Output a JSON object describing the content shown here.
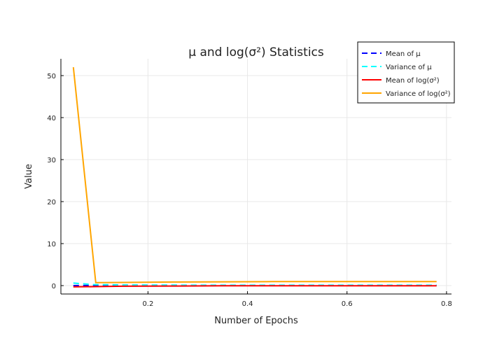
{
  "chart_data": {
    "type": "line",
    "title": "μ and log(σ²) Statistics",
    "xlabel": "Number of Epochs",
    "ylabel": "Value",
    "xlim": [
      0.025,
      0.81
    ],
    "ylim": [
      -2,
      54
    ],
    "xticks": [
      0.2,
      0.4,
      0.6,
      0.8
    ],
    "xtick_labels": [
      "0.2",
      "0.4",
      "0.6",
      "0.8"
    ],
    "yticks": [
      0,
      10,
      20,
      30,
      40,
      50
    ],
    "ytick_labels": [
      "0",
      "10",
      "20",
      "30",
      "40",
      "50"
    ],
    "grid": true,
    "legend_position": "top-right",
    "series": [
      {
        "name": "Mean of μ",
        "color": "#0000ff",
        "dash": "dashed",
        "x": [
          0.05,
          0.09,
          0.15,
          0.25,
          0.35,
          0.45,
          0.55,
          0.65,
          0.78
        ],
        "y": [
          0.0,
          0.05,
          0.05,
          0.05,
          0.05,
          0.05,
          0.05,
          0.05,
          0.05
        ]
      },
      {
        "name": "Variance of μ",
        "color": "#00ffff",
        "dash": "dashed",
        "x": [
          0.05,
          0.09,
          0.15,
          0.25,
          0.35,
          0.45,
          0.55,
          0.65,
          0.78
        ],
        "y": [
          0.6,
          0.25,
          0.15,
          0.12,
          0.1,
          0.1,
          0.1,
          0.1,
          0.1
        ]
      },
      {
        "name": "Mean of log(σ²)",
        "color": "#ff0000",
        "dash": "solid",
        "x": [
          0.05,
          0.09,
          0.15,
          0.25,
          0.35,
          0.45,
          0.55,
          0.65,
          0.78
        ],
        "y": [
          -0.3,
          -0.25,
          -0.15,
          -0.1,
          -0.05,
          -0.05,
          -0.05,
          -0.05,
          -0.05
        ]
      },
      {
        "name": "Variance of log(σ²)",
        "color": "#ffa500",
        "dash": "solid",
        "x": [
          0.05,
          0.095,
          0.15,
          0.25,
          0.35,
          0.45,
          0.55,
          0.65,
          0.78
        ],
        "y": [
          52,
          0.7,
          0.75,
          0.85,
          0.9,
          0.95,
          0.95,
          0.95,
          0.95
        ]
      }
    ]
  }
}
